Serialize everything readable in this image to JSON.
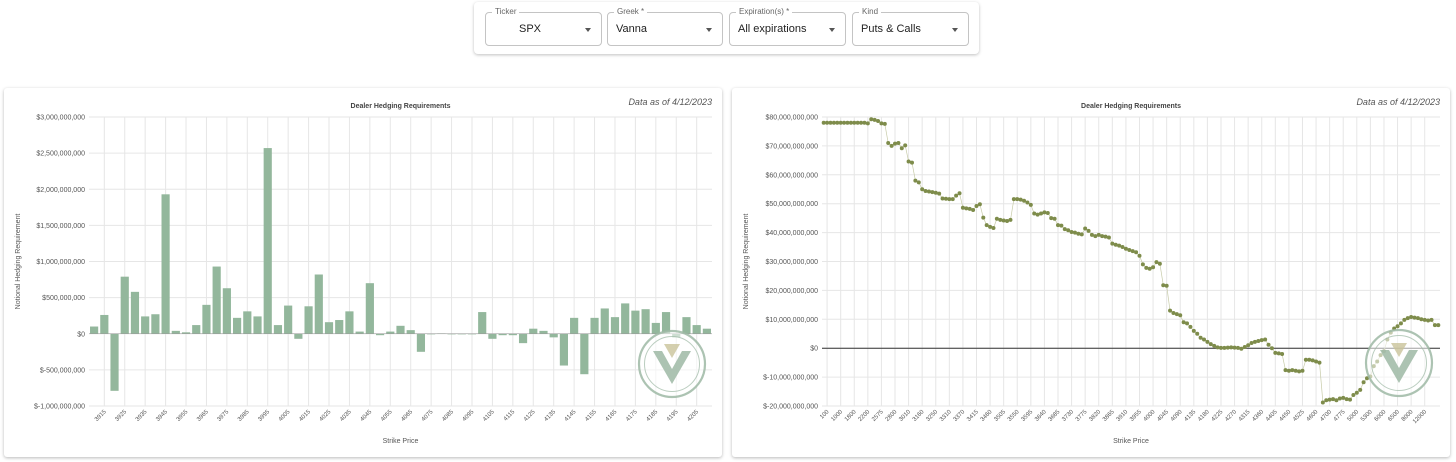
{
  "filters": [
    {
      "label": "Ticker",
      "value": "SPX"
    },
    {
      "label": "Greek *",
      "value": "Vanna"
    },
    {
      "label": "Expiration(s) *",
      "value": "All expirations"
    },
    {
      "label": "Kind",
      "value": "Puts & Calls"
    }
  ],
  "left_card": {
    "as_of": "Data as of 4/12/2023"
  },
  "right_card": {
    "as_of": "Data as of 4/12/2023"
  },
  "colors": {
    "bar": "#93b79c",
    "dot": "#7e8c4b",
    "zero_line": "#333333",
    "grid": "#e6e6e6",
    "logo": "#9db8a4"
  },
  "chart_data": [
    {
      "type": "bar",
      "title": "Dealer Hedging Requirements",
      "xlabel": "Strike Price",
      "ylabel": "Notional Hedging Requirement",
      "ylim": [
        -1000000000,
        3000000000
      ],
      "yticks": [
        {
          "v": 3000000000,
          "t": "$3,000,000,000"
        },
        {
          "v": 2500000000,
          "t": "$2,500,000,000"
        },
        {
          "v": 2000000000,
          "t": "$2,000,000,000"
        },
        {
          "v": 1500000000,
          "t": "$1,500,000,000"
        },
        {
          "v": 1000000000,
          "t": "$1,000,000,000"
        },
        {
          "v": 500000000,
          "t": "$500,000,000"
        },
        {
          "v": 0,
          "t": "$0"
        },
        {
          "v": -500000000,
          "t": "$-500,000,000"
        },
        {
          "v": -1000000000,
          "t": "$-1,000,000,000"
        }
      ],
      "x_tick_labels": [
        "3915",
        "3925",
        "3935",
        "3945",
        "3955",
        "3965",
        "3975",
        "3985",
        "3995",
        "4005",
        "4015",
        "4025",
        "4035",
        "4045",
        "4055",
        "4065",
        "4075",
        "4085",
        "4095",
        "4105",
        "4115",
        "4125",
        "4135",
        "4145",
        "4155",
        "4165",
        "4175",
        "4185",
        "4195",
        "4205"
      ],
      "categories": [
        "3910",
        "3915",
        "3920",
        "3925",
        "3930",
        "3935",
        "3940",
        "3945",
        "3950",
        "3955",
        "3960",
        "3965",
        "3970",
        "3975",
        "3980",
        "3985",
        "3990",
        "3995",
        "4000",
        "4005",
        "4010",
        "4015",
        "4020",
        "4025",
        "4030",
        "4035",
        "4040",
        "4045",
        "4050",
        "4055",
        "4060",
        "4065",
        "4070",
        "4075",
        "4080",
        "4085",
        "4090",
        "4095",
        "4100",
        "4105",
        "4110",
        "4115",
        "4120",
        "4125",
        "4130",
        "4135",
        "4140",
        "4145",
        "4150",
        "4155",
        "4160",
        "4165",
        "4170",
        "4175",
        "4180",
        "4185",
        "4190",
        "4195",
        "4200",
        "4205",
        "4210"
      ],
      "values": [
        100000000,
        260000000,
        -790000000,
        790000000,
        580000000,
        240000000,
        270000000,
        1930000000,
        40000000,
        20000000,
        120000000,
        400000000,
        930000000,
        630000000,
        220000000,
        310000000,
        240000000,
        2570000000,
        120000000,
        390000000,
        -70000000,
        380000000,
        820000000,
        160000000,
        190000000,
        310000000,
        30000000,
        700000000,
        -20000000,
        30000000,
        110000000,
        50000000,
        -250000000,
        0,
        5000000,
        0,
        -5000000,
        0,
        300000000,
        -70000000,
        -20000000,
        -20000000,
        -130000000,
        70000000,
        40000000,
        -50000000,
        -440000000,
        220000000,
        -560000000,
        220000000,
        350000000,
        230000000,
        420000000,
        320000000,
        340000000,
        150000000,
        300000000,
        -50000000,
        230000000,
        120000000,
        70000000
      ]
    },
    {
      "type": "scatter",
      "title": "Dealer Hedging Requirements",
      "xlabel": "Strike Price",
      "ylabel": "Notional Hedging Requirement",
      "ylim": [
        -20000000000,
        80000000000
      ],
      "yticks": [
        {
          "v": 80000000000,
          "t": "$80,000,000,000"
        },
        {
          "v": 70000000000,
          "t": "$70,000,000,000"
        },
        {
          "v": 60000000000,
          "t": "$60,000,000,000"
        },
        {
          "v": 50000000000,
          "t": "$50,000,000,000"
        },
        {
          "v": 40000000000,
          "t": "$40,000,000,000"
        },
        {
          "v": 30000000000,
          "t": "$30,000,000,000"
        },
        {
          "v": 20000000000,
          "t": "$20,000,000,000"
        },
        {
          "v": 10000000000,
          "t": "$10,000,000,000"
        },
        {
          "v": 0,
          "t": "$0"
        },
        {
          "v": -10000000000,
          "t": "$-10,000,000,000"
        },
        {
          "v": -20000000000,
          "t": "$-20,000,000,000"
        }
      ],
      "x_tick_labels": [
        "100",
        "1000",
        "1800",
        "2200",
        "2575",
        "2800",
        "3010",
        "3160",
        "3250",
        "3310",
        "3370",
        "3415",
        "3460",
        "3505",
        "3550",
        "3595",
        "3640",
        "3685",
        "3730",
        "3775",
        "3820",
        "3865",
        "3910",
        "3955",
        "4000",
        "4045",
        "4090",
        "4135",
        "4180",
        "4225",
        "4270",
        "4315",
        "4360",
        "4405",
        "4450",
        "4525",
        "4600",
        "4700",
        "4775",
        "5000",
        "5300",
        "6000",
        "6500",
        "8000",
        "12000"
      ],
      "points": [
        [
          0,
          78
        ],
        [
          1,
          78
        ],
        [
          2,
          78
        ],
        [
          3,
          78
        ],
        [
          4,
          78
        ],
        [
          5,
          78
        ],
        [
          6,
          78
        ],
        [
          7,
          78
        ],
        [
          8,
          78
        ],
        [
          9,
          78
        ],
        [
          10,
          78
        ],
        [
          11,
          78
        ],
        [
          12,
          78
        ],
        [
          13,
          77.8
        ],
        [
          14,
          79.2
        ],
        [
          15,
          79
        ],
        [
          16,
          78.6
        ],
        [
          17,
          77.8
        ],
        [
          18,
          77.6
        ],
        [
          19,
          71
        ],
        [
          20,
          70
        ],
        [
          21,
          70.8
        ],
        [
          22,
          71
        ],
        [
          23,
          69.2
        ],
        [
          24,
          70.2
        ],
        [
          25,
          64.6
        ],
        [
          26,
          64.2
        ],
        [
          27,
          58
        ],
        [
          28,
          57.4
        ],
        [
          29,
          55
        ],
        [
          30,
          54.4
        ],
        [
          31,
          54.2
        ],
        [
          32,
          54
        ],
        [
          33,
          53.8
        ],
        [
          34,
          53.5
        ],
        [
          35,
          51.8
        ],
        [
          36,
          51.7
        ],
        [
          37,
          51.6
        ],
        [
          38,
          51.6
        ],
        [
          39,
          52.8
        ],
        [
          40,
          53.6
        ],
        [
          41,
          48.6
        ],
        [
          42,
          48.4
        ],
        [
          43,
          48.2
        ],
        [
          44,
          47.8
        ],
        [
          45,
          49.2
        ],
        [
          46,
          49.8
        ],
        [
          47,
          45.2
        ],
        [
          48,
          42.6
        ],
        [
          49,
          42
        ],
        [
          50,
          41.6
        ],
        [
          51,
          44.8
        ],
        [
          52,
          44.4
        ],
        [
          53,
          44.2
        ],
        [
          54,
          44
        ],
        [
          55,
          44.4
        ],
        [
          56,
          51.6
        ],
        [
          57,
          51.6
        ],
        [
          58,
          51.4
        ],
        [
          59,
          51
        ],
        [
          60,
          50.4
        ],
        [
          61,
          49.6
        ],
        [
          62,
          46.6
        ],
        [
          63,
          46.2
        ],
        [
          64,
          46.6
        ],
        [
          65,
          47
        ],
        [
          66,
          46.8
        ],
        [
          67,
          45
        ],
        [
          68,
          44.8
        ],
        [
          69,
          42.6
        ],
        [
          70,
          42.4
        ],
        [
          71,
          41.2
        ],
        [
          72,
          40.8
        ],
        [
          73,
          40.2
        ],
        [
          74,
          40
        ],
        [
          75,
          39.6
        ],
        [
          76,
          39.4
        ],
        [
          77,
          41.4
        ],
        [
          78,
          40.6
        ],
        [
          79,
          39.2
        ],
        [
          80,
          38.8
        ],
        [
          81,
          39.2
        ],
        [
          82,
          38.8
        ],
        [
          83,
          38.6
        ],
        [
          84,
          38.3
        ],
        [
          85,
          36.2
        ],
        [
          86,
          35.8
        ],
        [
          87,
          35.5
        ],
        [
          88,
          35
        ],
        [
          89,
          34.4
        ],
        [
          90,
          34
        ],
        [
          91,
          33.6
        ],
        [
          92,
          33.2
        ],
        [
          93,
          32
        ],
        [
          94,
          29
        ],
        [
          95,
          27.8
        ],
        [
          96,
          27.5
        ],
        [
          97,
          28
        ],
        [
          98,
          29.8
        ],
        [
          99,
          29.2
        ],
        [
          100,
          21.8
        ],
        [
          101,
          21.6
        ],
        [
          102,
          13
        ],
        [
          103,
          12.2
        ],
        [
          104,
          11.8
        ],
        [
          105,
          11.4
        ],
        [
          106,
          9
        ],
        [
          107,
          8.6
        ],
        [
          108,
          7.4
        ],
        [
          109,
          6
        ],
        [
          110,
          5
        ],
        [
          111,
          3.6
        ],
        [
          112,
          3
        ],
        [
          113,
          2.2
        ],
        [
          114,
          1.4
        ],
        [
          115,
          0.8
        ],
        [
          116,
          0.3
        ],
        [
          117,
          0.1
        ],
        [
          118,
          0.1
        ],
        [
          119,
          0.2
        ],
        [
          120,
          0.3
        ],
        [
          121,
          0.2
        ],
        [
          122,
          0.1
        ],
        [
          123,
          -0.2
        ],
        [
          124,
          0.4
        ],
        [
          125,
          1
        ],
        [
          126,
          1.8
        ],
        [
          127,
          2.2
        ],
        [
          128,
          2.5
        ],
        [
          129,
          2.8
        ],
        [
          130,
          3
        ],
        [
          131,
          1.2
        ],
        [
          132,
          0
        ],
        [
          133,
          -1.6
        ],
        [
          134,
          -1.8
        ],
        [
          135,
          -2
        ],
        [
          136,
          -7.6
        ],
        [
          137,
          -7.8
        ],
        [
          138,
          -7.6
        ],
        [
          139,
          -7.8
        ],
        [
          140,
          -8
        ],
        [
          141,
          -7.8
        ],
        [
          142,
          -4
        ],
        [
          143,
          -4
        ],
        [
          144,
          -4.2
        ],
        [
          145,
          -4.6
        ],
        [
          146,
          -5
        ],
        [
          147,
          -18.8
        ],
        [
          148,
          -18
        ],
        [
          149,
          -17.8
        ],
        [
          150,
          -17.6
        ],
        [
          151,
          -18
        ],
        [
          152,
          -17.4
        ],
        [
          153,
          -17.2
        ],
        [
          154,
          -17.6
        ],
        [
          155,
          -17.8
        ],
        [
          156,
          -16.2
        ],
        [
          157,
          -15.4
        ],
        [
          158,
          -14.4
        ],
        [
          159,
          -11.8
        ],
        [
          160,
          -10.4
        ],
        [
          161,
          -9.8
        ],
        [
          162,
          -6.2
        ],
        [
          163,
          -4.6
        ],
        [
          164,
          -2.4
        ],
        [
          165,
          -1
        ],
        [
          166,
          3
        ],
        [
          167,
          5.4
        ],
        [
          168,
          6.8
        ],
        [
          169,
          7.6
        ],
        [
          170,
          8.6
        ],
        [
          171,
          9.8
        ],
        [
          172,
          10.4
        ],
        [
          173,
          10.8
        ],
        [
          174,
          10.6
        ],
        [
          175,
          10.4
        ],
        [
          176,
          10
        ],
        [
          177,
          9.8
        ],
        [
          178,
          9.6
        ],
        [
          179,
          9.8
        ],
        [
          180,
          8
        ],
        [
          181,
          8
        ]
      ]
    }
  ]
}
